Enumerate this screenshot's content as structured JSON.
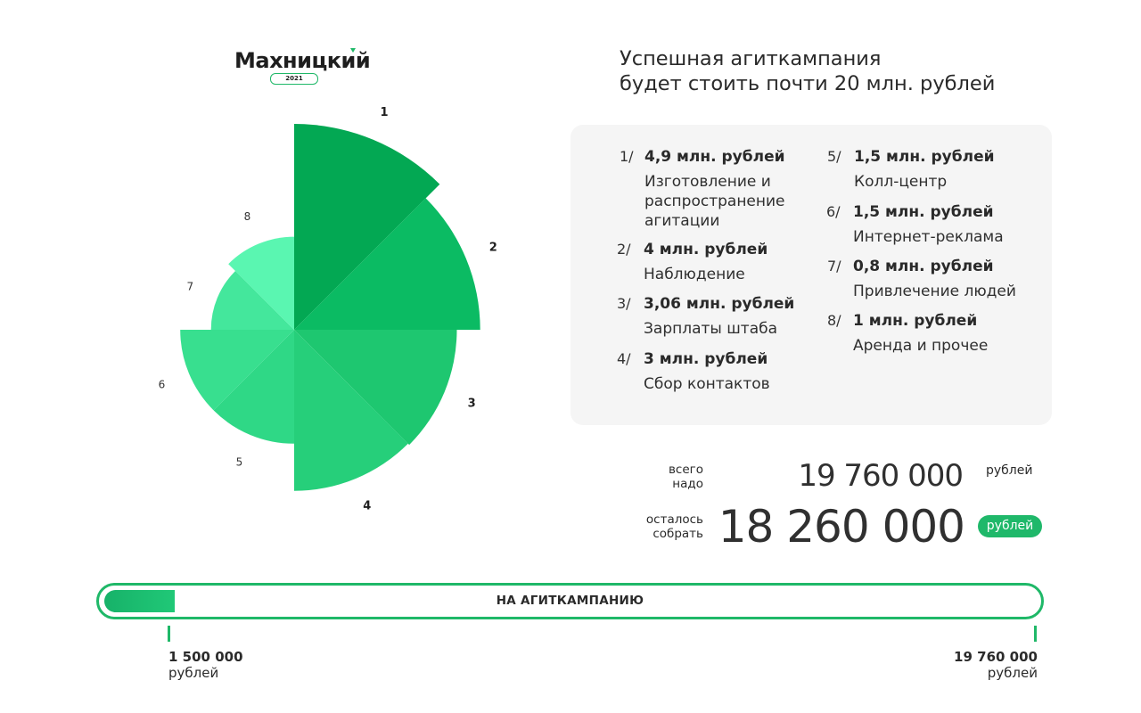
{
  "logo": {
    "name": "Махницкий",
    "year": "2021"
  },
  "headline": {
    "line1": "Успешная агиткампания",
    "line2": "будет стоить почти 20 млн. рублей"
  },
  "chart_data": {
    "type": "pie",
    "title": "",
    "slice_labels": [
      "1",
      "2",
      "3",
      "4",
      "5",
      "6",
      "7",
      "8"
    ],
    "values": [
      4.9,
      4,
      3.06,
      3,
      1.5,
      1.5,
      0.8,
      1
    ],
    "unit": "млн. рублей",
    "colors": [
      "#03a853",
      "#0bbb63",
      "#1ec770",
      "#26cf7a",
      "#2fd886",
      "#38df8f",
      "#44e79c",
      "#5af6b1"
    ]
  },
  "breakdown": [
    {
      "num": "1/",
      "amount": "4,9 млн. рублей",
      "label": "Изготовление и распространение агитации"
    },
    {
      "num": "2/",
      "amount": "4 млн. рублей",
      "label": "Наблюдение"
    },
    {
      "num": "3/",
      "amount": "3,06 млн. рублей",
      "label": "Зарплаты штаба"
    },
    {
      "num": "4/",
      "amount": "3 млн. рублей",
      "label": "Сбор контактов"
    },
    {
      "num": "5/",
      "amount": "1,5 млн. рублей",
      "label": "Колл-центр"
    },
    {
      "num": "6/",
      "amount": "1,5 млн. рублей",
      "label": "Интернет-реклама"
    },
    {
      "num": "7/",
      "amount": "0,8 млн. рублей",
      "label": "Привлечение людей"
    },
    {
      "num": "8/",
      "amount": "1 млн. рублей",
      "label": "Аренда и прочее"
    }
  ],
  "totals": {
    "needed_caption_1": "всего",
    "needed_caption_2": "надо",
    "needed_value": "19 760 000",
    "needed_unit": "рублей",
    "remaining_caption_1": "осталось",
    "remaining_caption_2": "собрать",
    "remaining_value": "18 260 000",
    "remaining_unit": "рублей"
  },
  "progress": {
    "label": "НА АГИТКАМПАНИЮ",
    "collected": 1500000,
    "goal": 19760000,
    "start_value": "1 500 000",
    "start_unit": "рублей",
    "end_value": "19 760 000",
    "end_unit": "рублей",
    "color": "#1fb868"
  }
}
